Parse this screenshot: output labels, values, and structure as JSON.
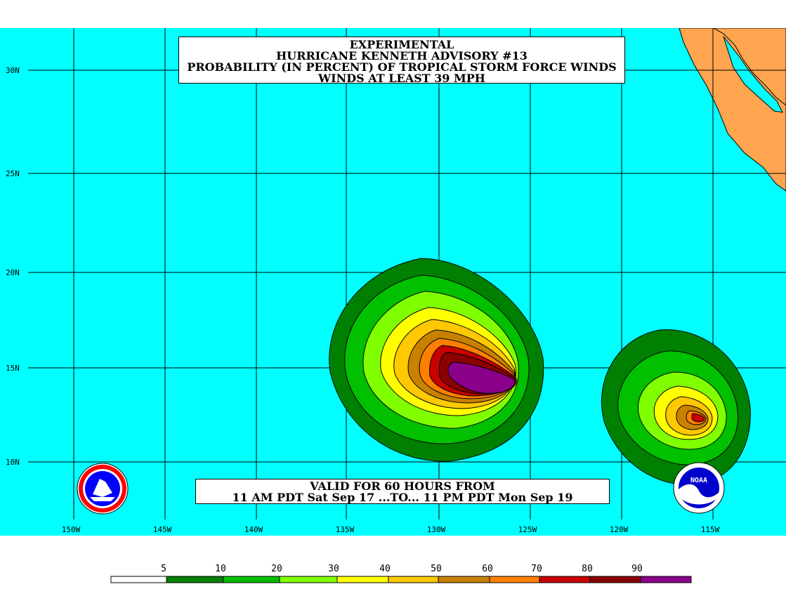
{
  "title": {
    "line1": "EXPERIMENTAL",
    "line2": "HURRICANE KENNETH ADVISORY #13",
    "line3": "PROBABILITY (IN PERCENT) OF TROPICAL STORM FORCE WINDS",
    "line4": "WINDS AT LEAST 39 MPH"
  },
  "valid": {
    "line1": "VALID FOR 60 HOURS FROM",
    "line2": "11 AM PDT Sat Sep 17 ...TO... 11 PM PDT Mon Sep 19"
  },
  "lat_labels": [
    "30N",
    "25N",
    "20N",
    "15N",
    "10N"
  ],
  "lon_labels": [
    "150W",
    "145W",
    "140W",
    "135W",
    "130W",
    "125W",
    "120W",
    "115W"
  ],
  "legend": {
    "labels": [
      "5",
      "10",
      "20",
      "30",
      "40",
      "50",
      "60",
      "70",
      "80",
      "90"
    ],
    "colors": [
      "#ffffff",
      "#008000",
      "#00c000",
      "#80ff00",
      "#ffff00",
      "#ffc800",
      "#c88200",
      "#ff8000",
      "#c80000",
      "#8b0000",
      "#8b008b"
    ]
  },
  "colors": {
    "ocean": "#00ffff",
    "land": "#ffa54f",
    "grid": "#000000"
  },
  "logos": [
    "nws-logo",
    "noaa-logo"
  ]
}
